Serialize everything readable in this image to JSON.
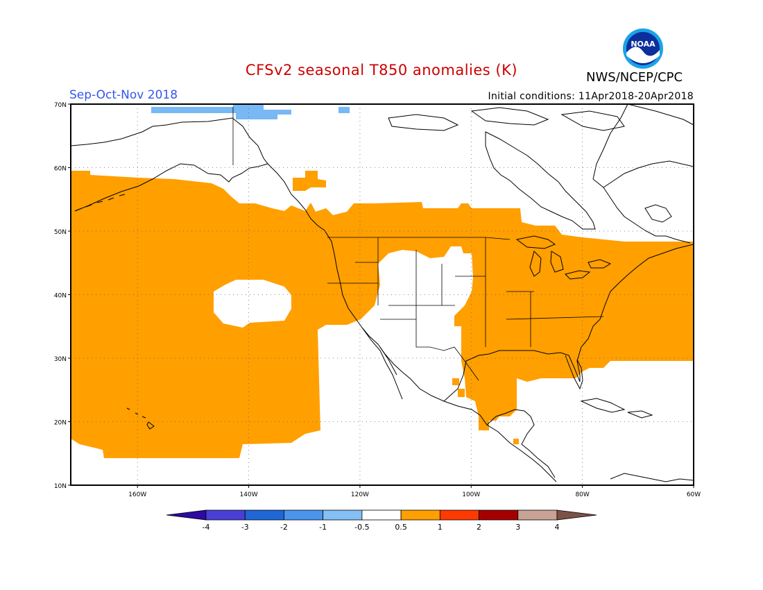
{
  "title": "CFSv2 seasonal T850 anomalies (K)",
  "season": "Sep-Oct-Nov 2018",
  "agency": "NWS/NCEP/CPC",
  "initial_conditions": "Initial conditions: 11Apr2018-20Apr2018",
  "logo": {
    "text": "NOAA",
    "icon": "noaa-logo"
  },
  "colors": {
    "title": "#cc0000",
    "season": "#3355ee",
    "warm_anomaly": "#ff9f00",
    "cool_anomaly": "#77b8f5",
    "coastline": "#000000"
  },
  "map": {
    "lon_range": [
      -172,
      -60
    ],
    "lat_range": [
      10,
      70
    ],
    "lat_labels": [
      "70N",
      "60N",
      "50N",
      "40N",
      "30N",
      "20N",
      "10N"
    ],
    "lon_labels": [
      "160W",
      "140W",
      "120W",
      "100W",
      "80W",
      "60W"
    ]
  },
  "colorbar": {
    "labels": [
      "-4",
      "-3",
      "-2",
      "-1",
      "-0.5",
      "0.5",
      "1",
      "2",
      "3",
      "4"
    ],
    "colors": [
      "#2d0aa0",
      "#4a3fd4",
      "#1f66d6",
      "#4a95ee",
      "#84bff5",
      "#ffffff",
      "#ff9f00",
      "#ff3a00",
      "#a50000",
      "#c8a395",
      "#7a5246"
    ]
  }
}
